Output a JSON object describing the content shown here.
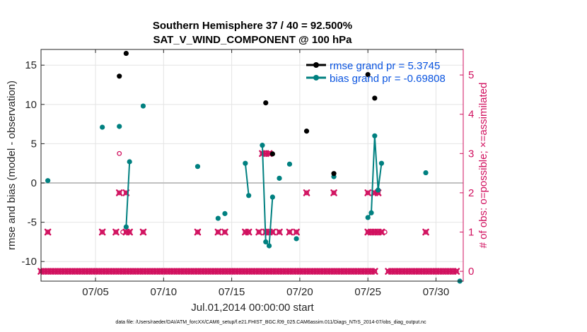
{
  "chart_data": {
    "type": "scatter",
    "title": "Southern Hemisphere 37 / 40 = 92.500%",
    "subtitle": "SAT_V_WIND_COMPONENT @ 100 hPa",
    "xlabel": "Jul.01,2014 00:00:00 start",
    "ylabel": "rmse and bias (model - observation)",
    "y2label": "# of obs: o=possible; ×=assimilated",
    "footer": "data file: /Users/raeder/DAI/ATM_forcXX/CAM6_setup/f.e21.FHIST_BGC.f09_025.CAM6assim.011/Diags_NTrS_2014-07/obs_diag_output.nc",
    "xlim": [
      1,
      32
    ],
    "ylim": [
      -12.5,
      17
    ],
    "y2lim": [
      -0.25,
      5.65
    ],
    "x_ticks": [
      5,
      10,
      15,
      20,
      25,
      30
    ],
    "x_tick_labels": [
      "07/05",
      "07/10",
      "07/15",
      "07/20",
      "07/25",
      "07/30"
    ],
    "y_ticks": [
      -10,
      -5,
      0,
      5,
      10,
      15
    ],
    "y_tick_labels": [
      "-10",
      "-5",
      "0",
      "5",
      "10",
      "15"
    ],
    "y2_ticks": [
      0,
      1,
      2,
      3,
      4,
      5
    ],
    "y2_tick_labels": [
      "0",
      "1",
      "2",
      "3",
      "4",
      "5"
    ],
    "legend": {
      "placement": "top-right"
    },
    "colors": {
      "rmse": "#000000",
      "bias": "#008080",
      "obs": "#d1115f",
      "zero_line": "#c0c0c0"
    },
    "series": [
      {
        "name": "rmse grand pr = 5.3745",
        "axis": "left",
        "points": [
          [
            6.75,
            13.6
          ],
          [
            7.25,
            16.5
          ],
          [
            17.5,
            10.2
          ],
          [
            18.0,
            3.7
          ],
          [
            20.5,
            6.6
          ],
          [
            22.5,
            1.2
          ],
          [
            25.0,
            13.8
          ],
          [
            25.5,
            10.8
          ]
        ]
      },
      {
        "name": "bias grand pr = -0.69808",
        "axis": "left",
        "points": [
          [
            1.5,
            0.3
          ],
          [
            5.5,
            7.1
          ],
          [
            6.75,
            7.2
          ],
          [
            7.25,
            -5.6
          ],
          [
            7.5,
            2.7
          ],
          [
            8.5,
            9.8
          ],
          [
            12.5,
            2.1
          ],
          [
            14.0,
            -4.5
          ],
          [
            14.5,
            -3.9
          ],
          [
            16.0,
            2.5
          ],
          [
            16.25,
            -1.6
          ],
          [
            17.25,
            4.8
          ],
          [
            17.5,
            -7.5
          ],
          [
            17.75,
            -8.0
          ],
          [
            18.0,
            -1.8
          ],
          [
            18.5,
            0.6
          ],
          [
            19.25,
            2.4
          ],
          [
            19.75,
            -7.1
          ],
          [
            22.5,
            0.8
          ],
          [
            25.0,
            -4.4
          ],
          [
            25.25,
            -3.8
          ],
          [
            25.5,
            6.0
          ],
          [
            25.75,
            -0.9
          ],
          [
            26.0,
            2.5
          ],
          [
            29.25,
            1.3
          ],
          [
            31.75,
            -12.5
          ]
        ],
        "connected_segments": [
          [
            [
              7.25,
              -5.6
            ],
            [
              7.5,
              2.7
            ]
          ],
          [
            [
              16.0,
              2.5
            ],
            [
              16.25,
              -1.6
            ]
          ],
          [
            [
              17.25,
              4.8
            ],
            [
              17.5,
              -7.5
            ],
            [
              17.75,
              -8.0
            ],
            [
              18.0,
              -1.8
            ]
          ],
          [
            [
              25.0,
              -4.4
            ],
            [
              25.25,
              -3.8
            ],
            [
              25.5,
              6.0
            ],
            [
              25.75,
              -0.9
            ],
            [
              26.0,
              2.5
            ]
          ]
        ]
      }
    ],
    "obs_possible": [
      [
        1.0,
        0
      ],
      [
        1.25,
        0
      ],
      [
        1.5,
        0
      ],
      [
        1.5,
        1
      ],
      [
        1.75,
        0
      ],
      [
        2.0,
        0
      ],
      [
        2.25,
        0
      ],
      [
        2.5,
        0
      ],
      [
        2.75,
        0
      ],
      [
        3.0,
        0
      ],
      [
        3.25,
        0
      ],
      [
        3.5,
        0
      ],
      [
        3.75,
        0
      ],
      [
        4.0,
        0
      ],
      [
        4.25,
        0
      ],
      [
        4.5,
        0
      ],
      [
        4.75,
        0
      ],
      [
        5.0,
        0
      ],
      [
        5.25,
        0
      ],
      [
        5.5,
        0
      ],
      [
        5.5,
        1
      ],
      [
        5.75,
        0
      ],
      [
        6.0,
        0
      ],
      [
        6.25,
        0
      ],
      [
        6.5,
        0
      ],
      [
        6.5,
        1
      ],
      [
        6.75,
        0
      ],
      [
        6.75,
        2
      ],
      [
        6.75,
        3
      ],
      [
        7.0,
        0
      ],
      [
        7.0,
        1
      ],
      [
        7.25,
        0
      ],
      [
        7.25,
        1
      ],
      [
        7.25,
        2
      ],
      [
        7.5,
        0
      ],
      [
        7.5,
        1
      ],
      [
        7.75,
        0
      ],
      [
        8.0,
        0
      ],
      [
        8.25,
        0
      ],
      [
        8.5,
        0
      ],
      [
        8.5,
        1
      ],
      [
        8.75,
        0
      ],
      [
        9.0,
        0
      ],
      [
        9.25,
        0
      ],
      [
        9.5,
        0
      ],
      [
        9.75,
        0
      ],
      [
        10.0,
        0
      ],
      [
        10.25,
        0
      ],
      [
        10.5,
        0
      ],
      [
        10.75,
        0
      ],
      [
        11.0,
        0
      ],
      [
        11.25,
        0
      ],
      [
        11.5,
        0
      ],
      [
        11.75,
        0
      ],
      [
        12.0,
        0
      ],
      [
        12.25,
        0
      ],
      [
        12.5,
        0
      ],
      [
        12.5,
        1
      ],
      [
        12.75,
        0
      ],
      [
        13.0,
        0
      ],
      [
        13.25,
        0
      ],
      [
        13.5,
        0
      ],
      [
        13.75,
        0
      ],
      [
        14.0,
        0
      ],
      [
        14.0,
        1
      ],
      [
        14.25,
        0
      ],
      [
        14.5,
        0
      ],
      [
        14.5,
        1
      ],
      [
        14.75,
        0
      ],
      [
        15.0,
        0
      ],
      [
        15.25,
        0
      ],
      [
        15.5,
        0
      ],
      [
        15.75,
        0
      ],
      [
        16.0,
        0
      ],
      [
        16.0,
        1
      ],
      [
        16.25,
        0
      ],
      [
        16.25,
        1
      ],
      [
        16.5,
        0
      ],
      [
        16.75,
        0
      ],
      [
        17.0,
        0
      ],
      [
        17.0,
        1
      ],
      [
        17.25,
        0
      ],
      [
        17.25,
        3
      ],
      [
        17.5,
        0
      ],
      [
        17.5,
        1
      ],
      [
        17.5,
        3
      ],
      [
        17.75,
        0
      ],
      [
        17.75,
        1
      ],
      [
        17.75,
        3
      ],
      [
        18.0,
        0
      ],
      [
        18.0,
        1
      ],
      [
        18.25,
        0
      ],
      [
        18.5,
        0
      ],
      [
        18.5,
        1
      ],
      [
        18.75,
        0
      ],
      [
        19.0,
        0
      ],
      [
        19.25,
        0
      ],
      [
        19.25,
        1
      ],
      [
        19.5,
        0
      ],
      [
        19.75,
        0
      ],
      [
        19.75,
        1
      ],
      [
        20.0,
        0
      ],
      [
        20.25,
        0
      ],
      [
        20.5,
        0
      ],
      [
        20.5,
        2
      ],
      [
        20.75,
        0
      ],
      [
        21.0,
        0
      ],
      [
        21.25,
        0
      ],
      [
        21.5,
        0
      ],
      [
        21.75,
        0
      ],
      [
        22.0,
        0
      ],
      [
        22.25,
        0
      ],
      [
        22.5,
        0
      ],
      [
        22.5,
        2
      ],
      [
        22.75,
        0
      ],
      [
        23.0,
        0
      ],
      [
        23.25,
        0
      ],
      [
        23.5,
        0
      ],
      [
        23.75,
        0
      ],
      [
        24.0,
        0
      ],
      [
        24.25,
        0
      ],
      [
        24.5,
        0
      ],
      [
        24.75,
        0
      ],
      [
        25.0,
        0
      ],
      [
        25.0,
        1
      ],
      [
        25.0,
        2
      ],
      [
        25.25,
        0
      ],
      [
        25.25,
        1
      ],
      [
        25.5,
        0
      ],
      [
        25.5,
        1
      ],
      [
        25.5,
        2
      ],
      [
        25.75,
        1
      ],
      [
        25.75,
        2
      ],
      [
        26.0,
        1
      ],
      [
        26.25,
        1
      ],
      [
        26.5,
        0
      ],
      [
        26.75,
        0
      ],
      [
        27.0,
        0
      ],
      [
        27.25,
        0
      ],
      [
        27.5,
        0
      ],
      [
        27.75,
        0
      ],
      [
        28.0,
        0
      ],
      [
        28.25,
        0
      ],
      [
        28.5,
        0
      ],
      [
        28.75,
        0
      ],
      [
        29.0,
        0
      ],
      [
        29.25,
        0
      ],
      [
        29.25,
        1
      ],
      [
        29.5,
        0
      ],
      [
        29.75,
        0
      ],
      [
        30.0,
        0
      ],
      [
        30.25,
        0
      ],
      [
        30.5,
        0
      ],
      [
        30.75,
        0
      ],
      [
        31.0,
        0
      ],
      [
        31.25,
        0
      ],
      [
        31.5,
        0
      ]
    ],
    "obs_assimilated": [
      [
        1.0,
        0
      ],
      [
        1.25,
        0
      ],
      [
        1.5,
        0
      ],
      [
        1.5,
        1
      ],
      [
        1.75,
        0
      ],
      [
        2.0,
        0
      ],
      [
        2.25,
        0
      ],
      [
        2.5,
        0
      ],
      [
        2.75,
        0
      ],
      [
        3.0,
        0
      ],
      [
        3.25,
        0
      ],
      [
        3.5,
        0
      ],
      [
        3.75,
        0
      ],
      [
        4.0,
        0
      ],
      [
        4.25,
        0
      ],
      [
        4.5,
        0
      ],
      [
        4.75,
        0
      ],
      [
        5.0,
        0
      ],
      [
        5.25,
        0
      ],
      [
        5.5,
        0
      ],
      [
        5.5,
        1
      ],
      [
        5.75,
        0
      ],
      [
        6.0,
        0
      ],
      [
        6.25,
        0
      ],
      [
        6.5,
        0
      ],
      [
        6.5,
        1
      ],
      [
        6.75,
        0
      ],
      [
        6.75,
        2
      ],
      [
        7.0,
        0
      ],
      [
        7.25,
        0
      ],
      [
        7.25,
        1
      ],
      [
        7.25,
        2
      ],
      [
        7.5,
        0
      ],
      [
        7.5,
        1
      ],
      [
        7.75,
        0
      ],
      [
        8.0,
        0
      ],
      [
        8.25,
        0
      ],
      [
        8.5,
        0
      ],
      [
        8.5,
        1
      ],
      [
        8.75,
        0
      ],
      [
        9.0,
        0
      ],
      [
        9.25,
        0
      ],
      [
        9.5,
        0
      ],
      [
        9.75,
        0
      ],
      [
        10.0,
        0
      ],
      [
        10.25,
        0
      ],
      [
        10.5,
        0
      ],
      [
        10.75,
        0
      ],
      [
        11.0,
        0
      ],
      [
        11.25,
        0
      ],
      [
        11.5,
        0
      ],
      [
        11.75,
        0
      ],
      [
        12.0,
        0
      ],
      [
        12.25,
        0
      ],
      [
        12.5,
        0
      ],
      [
        12.5,
        1
      ],
      [
        12.75,
        0
      ],
      [
        13.0,
        0
      ],
      [
        13.25,
        0
      ],
      [
        13.5,
        0
      ],
      [
        13.75,
        0
      ],
      [
        14.0,
        0
      ],
      [
        14.0,
        1
      ],
      [
        14.25,
        0
      ],
      [
        14.5,
        0
      ],
      [
        14.5,
        1
      ],
      [
        14.75,
        0
      ],
      [
        15.0,
        0
      ],
      [
        15.25,
        0
      ],
      [
        15.5,
        0
      ],
      [
        15.75,
        0
      ],
      [
        16.0,
        0
      ],
      [
        16.0,
        1
      ],
      [
        16.25,
        0
      ],
      [
        16.25,
        1
      ],
      [
        16.5,
        0
      ],
      [
        16.75,
        0
      ],
      [
        17.0,
        0
      ],
      [
        17.0,
        1
      ],
      [
        17.25,
        0
      ],
      [
        17.25,
        3
      ],
      [
        17.5,
        0
      ],
      [
        17.5,
        1
      ],
      [
        17.5,
        3
      ],
      [
        17.75,
        0
      ],
      [
        17.75,
        1
      ],
      [
        17.75,
        3
      ],
      [
        18.0,
        0
      ],
      [
        18.0,
        1
      ],
      [
        18.25,
        0
      ],
      [
        18.5,
        0
      ],
      [
        18.5,
        1
      ],
      [
        18.75,
        0
      ],
      [
        19.0,
        0
      ],
      [
        19.25,
        0
      ],
      [
        19.25,
        1
      ],
      [
        19.5,
        0
      ],
      [
        19.75,
        0
      ],
      [
        19.75,
        1
      ],
      [
        20.0,
        0
      ],
      [
        20.25,
        0
      ],
      [
        20.5,
        0
      ],
      [
        20.5,
        2
      ],
      [
        20.75,
        0
      ],
      [
        21.0,
        0
      ],
      [
        21.25,
        0
      ],
      [
        21.5,
        0
      ],
      [
        21.75,
        0
      ],
      [
        22.0,
        0
      ],
      [
        22.25,
        0
      ],
      [
        22.5,
        0
      ],
      [
        22.5,
        2
      ],
      [
        22.75,
        0
      ],
      [
        23.0,
        0
      ],
      [
        23.25,
        0
      ],
      [
        23.5,
        0
      ],
      [
        23.75,
        0
      ],
      [
        24.0,
        0
      ],
      [
        24.25,
        0
      ],
      [
        24.5,
        0
      ],
      [
        24.75,
        0
      ],
      [
        25.0,
        0
      ],
      [
        25.0,
        1
      ],
      [
        25.0,
        2
      ],
      [
        25.25,
        0
      ],
      [
        25.25,
        1
      ],
      [
        25.5,
        0
      ],
      [
        25.5,
        1
      ],
      [
        25.5,
        2
      ],
      [
        25.75,
        1
      ],
      [
        25.75,
        2
      ],
      [
        26.0,
        1
      ],
      [
        26.5,
        0
      ],
      [
        26.75,
        0
      ],
      [
        27.0,
        0
      ],
      [
        27.25,
        0
      ],
      [
        27.5,
        0
      ],
      [
        27.75,
        0
      ],
      [
        28.0,
        0
      ],
      [
        28.25,
        0
      ],
      [
        28.5,
        0
      ],
      [
        28.75,
        0
      ],
      [
        29.0,
        0
      ],
      [
        29.25,
        0
      ],
      [
        29.25,
        1
      ],
      [
        29.5,
        0
      ],
      [
        29.75,
        0
      ],
      [
        30.0,
        0
      ],
      [
        30.25,
        0
      ],
      [
        30.5,
        0
      ],
      [
        30.75,
        0
      ],
      [
        31.0,
        0
      ],
      [
        31.25,
        0
      ],
      [
        31.5,
        0
      ]
    ]
  }
}
